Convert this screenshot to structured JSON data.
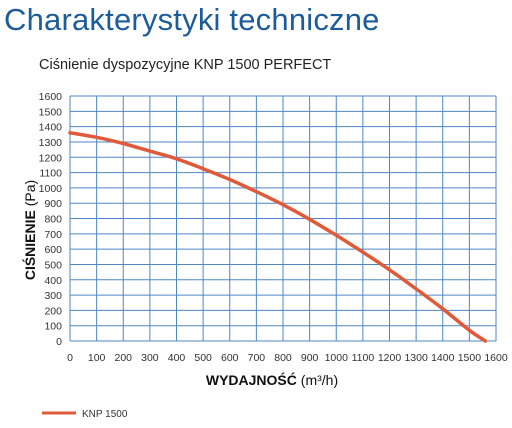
{
  "page": {
    "heading": "Charakterystyki techniczne",
    "heading_color": "#1d5c9a"
  },
  "chart_data": {
    "type": "line",
    "title": "Ciśnienie dyspozycyjne KNP 1500 PERFECT",
    "xlabel_bold": "WYDAJNOŚĆ",
    "xlabel_unit": " (m³/h)",
    "ylabel_bold": "CIŚNIENIE",
    "ylabel_unit": " (Pa)",
    "xlim": [
      0,
      1600
    ],
    "ylim": [
      0,
      1600
    ],
    "xticks": [
      0,
      100,
      200,
      300,
      400,
      500,
      600,
      700,
      800,
      900,
      1000,
      1100,
      1200,
      1300,
      1400,
      1500,
      1600
    ],
    "yticks": [
      0,
      100,
      200,
      300,
      400,
      500,
      600,
      700,
      800,
      900,
      1000,
      1100,
      1200,
      1300,
      1400,
      1500,
      1600
    ],
    "grid": true,
    "grid_color": "#4f86c6",
    "legend_position": "bottom-left",
    "series": [
      {
        "name": "KNP 1500",
        "color": "#e05a3a",
        "x": [
          0,
          100,
          200,
          300,
          400,
          500,
          600,
          700,
          800,
          900,
          1000,
          1100,
          1200,
          1300,
          1400,
          1500,
          1560
        ],
        "y": [
          1360,
          1330,
          1290,
          1240,
          1190,
          1125,
          1055,
          975,
          890,
          795,
          690,
          580,
          465,
          340,
          210,
          70,
          0
        ]
      }
    ]
  }
}
